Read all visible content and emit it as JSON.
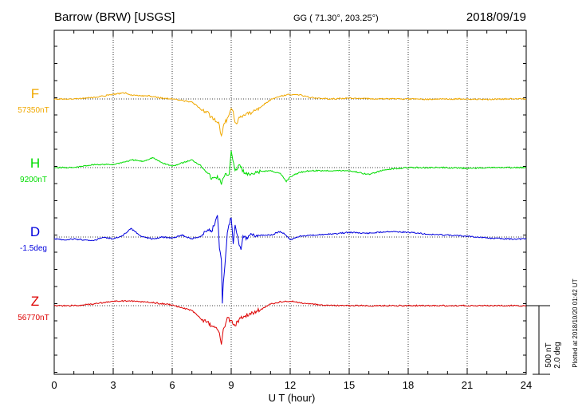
{
  "header": {
    "station": "Barrow (BRW)  [USGS]",
    "coords": "GG ( 71.30°, 203.25°)",
    "date": "2018/09/19"
  },
  "side_note": "Plotted at 2018/10/20 01:42 UT",
  "scale_bar": {
    "line1": "500 nT",
    "line2": "2.0 deg"
  },
  "colors": {
    "F": "#f0a800",
    "H": "#00dd00",
    "D": "#0000dd",
    "Z": "#dd0000"
  },
  "chart_data": {
    "type": "line",
    "xlabel": "U T (hour)",
    "xlim": [
      0,
      24
    ],
    "x_ticks": [
      0,
      3,
      6,
      9,
      12,
      15,
      18,
      21,
      24
    ],
    "grid": true,
    "series": [
      {
        "name": "F",
        "baseline_label": "57350nT",
        "x": [
          0,
          1,
          2,
          3,
          3.6,
          4,
          4.8,
          5.5,
          6,
          7,
          7.5,
          7.8,
          8,
          8.2,
          8.4,
          8.5,
          8.6,
          8.8,
          8.9,
          9,
          9.1,
          9.2,
          9.4,
          9.6,
          10,
          10.5,
          11,
          11.5,
          12,
          12.5,
          13,
          14,
          15,
          16,
          17,
          18,
          19,
          20,
          21,
          22,
          23,
          24
        ],
        "values": [
          0,
          0,
          20,
          60,
          80,
          45,
          40,
          10,
          0,
          -40,
          -140,
          -180,
          -250,
          -280,
          -340,
          -500,
          -350,
          -260,
          -200,
          -120,
          -170,
          -330,
          -260,
          -220,
          -180,
          -100,
          -10,
          40,
          60,
          50,
          20,
          0,
          10,
          5,
          0,
          0,
          -5,
          0,
          0,
          -5,
          0,
          0
        ]
      },
      {
        "name": "H",
        "baseline_label": "9200nT",
        "x": [
          0,
          1,
          2,
          3,
          4,
          4.5,
          5,
          5.5,
          6,
          7,
          7.5,
          7.8,
          8,
          8.3,
          8.5,
          8.7,
          8.9,
          9,
          9.2,
          9.4,
          9.7,
          10,
          10.5,
          11,
          11.5,
          11.8,
          12,
          12.5,
          13,
          14,
          15,
          16,
          16.5,
          17,
          18,
          19,
          20,
          21,
          22,
          23,
          24
        ],
        "values": [
          0,
          0,
          40,
          40,
          100,
          80,
          130,
          60,
          20,
          100,
          20,
          -60,
          -150,
          -120,
          -200,
          -100,
          -80,
          230,
          -60,
          40,
          -80,
          -100,
          -50,
          -40,
          -80,
          -180,
          -120,
          -60,
          -40,
          -40,
          -40,
          -90,
          -50,
          -20,
          0,
          0,
          0,
          -10,
          0,
          0,
          0
        ]
      },
      {
        "name": "D",
        "baseline_label": "-1.5deg",
        "x": [
          0,
          0.5,
          1,
          2,
          2.5,
          3,
          3.5,
          3.9,
          4.5,
          5,
          5.5,
          6,
          6.5,
          7,
          7.5,
          7.8,
          8,
          8.2,
          8.3,
          8.4,
          8.5,
          8.55,
          8.6,
          8.8,
          9,
          9.1,
          9.2,
          9.4,
          9.5,
          9.6,
          9.8,
          10,
          10.5,
          11,
          11.5,
          11.8,
          12,
          12.5,
          13,
          14,
          15,
          16,
          17,
          18,
          19,
          20,
          21,
          22,
          23,
          24
        ],
        "values": [
          -0.1,
          -0.15,
          -0.1,
          -0.2,
          0,
          -0.1,
          0.1,
          0.45,
          0,
          -0.1,
          0,
          -0.05,
          0.1,
          -0.1,
          0.05,
          0.4,
          0.3,
          0.8,
          1.2,
          -0.6,
          -1.3,
          -3.6,
          -2.5,
          0.2,
          1.1,
          -0.3,
          0.7,
          -0.4,
          -0.6,
          0.1,
          -0.1,
          0.1,
          0.1,
          0.1,
          0.3,
          0.1,
          -0.15,
          0.05,
          0.1,
          0.15,
          0.25,
          0.2,
          0.3,
          0.25,
          0.15,
          0.1,
          0.05,
          -0.05,
          -0.1,
          -0.1
        ]
      },
      {
        "name": "Z",
        "baseline_label": "56770nT",
        "x": [
          0,
          1,
          2,
          3,
          4,
          5,
          6,
          6.5,
          7,
          7.5,
          7.8,
          8,
          8.2,
          8.4,
          8.5,
          8.6,
          8.8,
          9,
          9.2,
          9.4,
          9.6,
          10,
          10.5,
          11,
          11.5,
          12,
          12.5,
          13,
          14,
          15,
          16,
          17,
          18,
          19,
          20,
          21,
          22,
          23,
          24
        ],
        "values": [
          0,
          0,
          20,
          60,
          60,
          40,
          10,
          -30,
          -60,
          -180,
          -220,
          -260,
          -300,
          -340,
          -520,
          -320,
          -160,
          -200,
          -260,
          -180,
          -140,
          -100,
          -50,
          20,
          50,
          60,
          40,
          20,
          0,
          0,
          0,
          0,
          0,
          0,
          0,
          0,
          0,
          0,
          0
        ]
      }
    ]
  }
}
